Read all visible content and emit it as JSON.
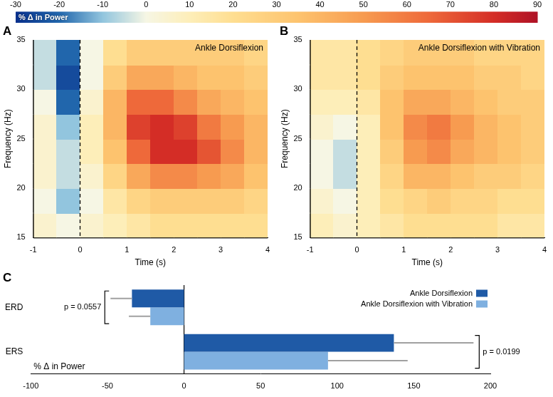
{
  "chart_data": [
    {
      "type": "heatmap",
      "panel_label": "A",
      "title": "Ankle Dorsiflexion",
      "x_label": "Time (s)",
      "y_label": "Frequency (Hz)",
      "x": [
        -0.75,
        -0.25,
        0.25,
        0.75,
        1.25,
        1.75,
        2.25,
        2.75,
        3.25,
        3.75
      ],
      "y": [
        16.25,
        18.75,
        21.25,
        23.75,
        26.25,
        28.75,
        31.25,
        33.75
      ],
      "cells": [
        [
          5,
          0,
          5,
          10,
          15,
          20,
          20,
          20,
          20,
          20
        ],
        [
          0,
          -10,
          0,
          15,
          25,
          30,
          30,
          30,
          30,
          25
        ],
        [
          5,
          -5,
          5,
          25,
          45,
          55,
          55,
          50,
          45,
          35
        ],
        [
          5,
          -5,
          10,
          35,
          65,
          80,
          80,
          70,
          55,
          40
        ],
        [
          5,
          -10,
          10,
          40,
          75,
          80,
          75,
          60,
          50,
          40
        ],
        [
          0,
          -20,
          5,
          40,
          65,
          65,
          55,
          45,
          40,
          35
        ],
        [
          -5,
          -25,
          0,
          30,
          45,
          45,
          40,
          35,
          35,
          30
        ],
        [
          -5,
          -20,
          0,
          20,
          30,
          30,
          30,
          30,
          30,
          25
        ]
      ],
      "xlim": [
        -1,
        4
      ],
      "xticks": [
        -1,
        0,
        1,
        2,
        3,
        4
      ],
      "ylim": [
        15,
        35
      ],
      "yticks": [
        15,
        20,
        25,
        30,
        35
      ],
      "vline": 0,
      "line_style": "dashed",
      "grid": false,
      "colorbar": {
        "label": "% Δ in Power",
        "range": [
          -30,
          90
        ],
        "ticks": [
          -30,
          -20,
          -10,
          0,
          10,
          20,
          30,
          40,
          50,
          60,
          70,
          80,
          90
        ]
      }
    },
    {
      "type": "heatmap",
      "panel_label": "B",
      "title": "Ankle Dorsiflexion with Vibration",
      "x_label": "Time (s)",
      "y_label": "Frequency (Hz)",
      "x": [
        -0.75,
        -0.25,
        0.25,
        0.75,
        1.25,
        1.75,
        2.25,
        2.75,
        3.25,
        3.75
      ],
      "y": [
        16.25,
        18.75,
        21.25,
        23.75,
        26.25,
        28.75,
        31.25,
        33.75
      ],
      "cells": [
        [
          10,
          5,
          10,
          15,
          20,
          20,
          20,
          20,
          15,
          15
        ],
        [
          5,
          0,
          10,
          20,
          25,
          30,
          25,
          25,
          20,
          20
        ],
        [
          0,
          -5,
          10,
          25,
          40,
          40,
          35,
          30,
          30,
          25
        ],
        [
          0,
          -5,
          10,
          30,
          50,
          55,
          45,
          40,
          35,
          30
        ],
        [
          5,
          0,
          10,
          35,
          55,
          60,
          50,
          40,
          35,
          30
        ],
        [
          10,
          10,
          15,
          35,
          45,
          45,
          40,
          35,
          30,
          30
        ],
        [
          15,
          15,
          20,
          30,
          35,
          35,
          35,
          30,
          30,
          25
        ],
        [
          15,
          15,
          20,
          25,
          30,
          30,
          30,
          25,
          25,
          25
        ]
      ],
      "xlim": [
        -1,
        4
      ],
      "xticks": [
        -1,
        0,
        1,
        2,
        3,
        4
      ],
      "ylim": [
        15,
        35
      ],
      "yticks": [
        15,
        20,
        25,
        30,
        35
      ],
      "vline": 0,
      "line_style": "dashed",
      "grid": false
    },
    {
      "type": "bar",
      "panel_label": "C",
      "orientation": "horizontal",
      "x_label": "% Δ in Power",
      "categories": [
        "ERD",
        "ERS"
      ],
      "series": [
        {
          "name": "Ankle Dorsiflexion",
          "color": "#1f5aa6",
          "values": [
            -34,
            137
          ],
          "errors": [
            14,
            52
          ]
        },
        {
          "name": "Ankle Dorsiflexion with Vibration",
          "color": "#7fb0e0",
          "values": [
            -22,
            94
          ],
          "errors": [
            14,
            52
          ]
        }
      ],
      "annotations": [
        {
          "text": "p = 0.0557",
          "category": "ERD"
        },
        {
          "text": "p = 0.0199",
          "category": "ERS"
        }
      ],
      "xlim": [
        -100,
        200
      ],
      "xticks": [
        -100,
        -50,
        0,
        50,
        100,
        150,
        200
      ],
      "legend": "upper right",
      "grid": false
    }
  ]
}
